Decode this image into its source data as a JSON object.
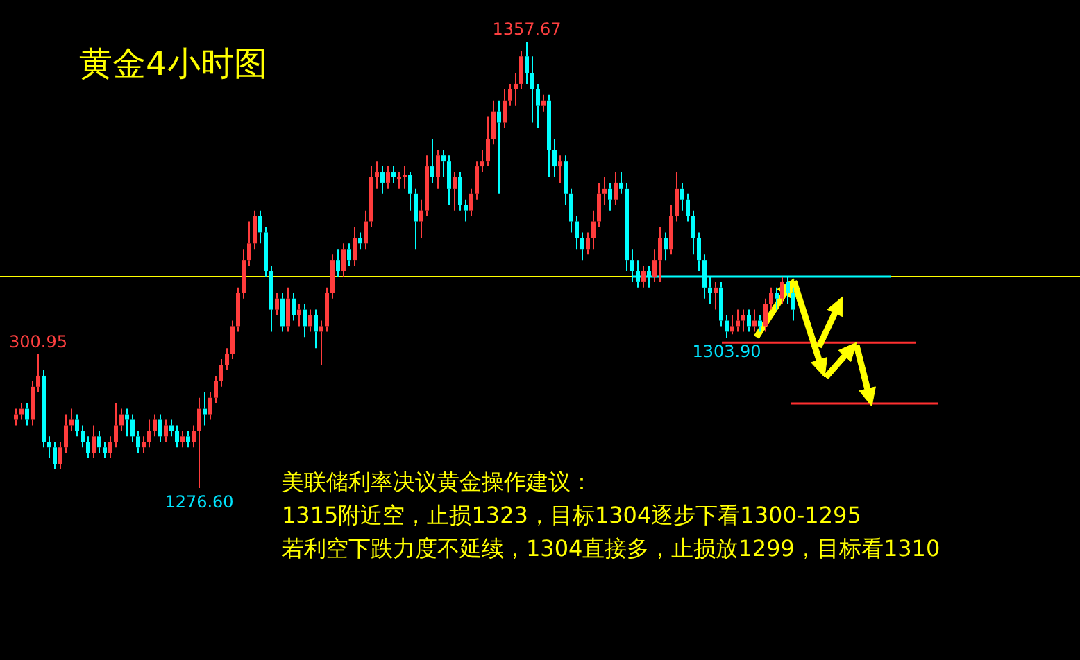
{
  "chart_data": {
    "type": "candlestick",
    "title": "黄金4小时图",
    "annotations": [
      {
        "text": "1357.67",
        "y": 1357.67
      },
      {
        "text": "1276.60",
        "y": 1276.6
      },
      {
        "text": "1303.90",
        "y": 1303.9
      },
      {
        "text": "300.95",
        "y": 1300.95
      },
      "美联储利率决议黄金操作建议：",
      "1315附近空，止损1323，目标1304逐步下看1300-1295",
      "若利空下跌力度不延续，1304直接多，止损放1299，目标看1310"
    ],
    "categories": [
      null,
      null,
      null,
      null,
      null,
      null,
      null,
      null,
      null,
      null,
      null,
      null,
      null,
      null,
      null,
      null,
      null,
      null,
      null,
      null,
      null,
      null,
      null,
      null,
      null,
      null,
      null,
      null,
      null,
      null,
      null,
      null,
      null,
      null,
      null,
      null,
      null,
      null,
      null,
      null,
      null,
      null,
      null,
      null,
      null,
      null,
      null,
      null,
      null,
      null,
      null,
      null,
      null,
      null,
      null,
      null,
      null,
      null,
      null,
      null,
      null,
      null,
      null,
      null,
      null,
      null,
      null,
      null,
      null,
      null,
      null,
      null,
      null,
      null,
      null,
      null,
      null,
      null,
      null,
      null,
      null,
      null,
      null,
      null,
      null,
      null,
      null,
      null,
      null,
      null,
      null,
      null,
      null,
      null,
      null,
      null,
      null,
      null,
      null,
      null,
      null,
      null,
      null,
      null,
      null,
      null,
      null,
      null,
      null,
      null,
      null,
      null,
      null,
      null,
      null,
      null,
      null,
      null,
      null,
      null,
      null,
      null,
      null,
      null,
      null,
      null,
      null,
      null,
      null,
      null,
      null,
      null,
      null,
      null,
      null,
      null,
      null,
      null,
      null,
      null,
      null
    ],
    "ohlc": [
      [
        1289,
        1291,
        1288,
        1290
      ],
      [
        1290,
        1292,
        1289,
        1291
      ],
      [
        1291,
        1292,
        1288,
        1289
      ],
      [
        1289,
        1296,
        1288,
        1295
      ],
      [
        1295,
        1300.95,
        1294,
        1297
      ],
      [
        1297,
        1298,
        1284,
        1285
      ],
      [
        1285,
        1286,
        1282,
        1284
      ],
      [
        1284,
        1285,
        1280,
        1281
      ],
      [
        1281,
        1285,
        1280,
        1284
      ],
      [
        1284,
        1290,
        1283,
        1288
      ],
      [
        1288,
        1291,
        1287,
        1289
      ],
      [
        1289,
        1290,
        1286,
        1287
      ],
      [
        1287,
        1288,
        1284,
        1285
      ],
      [
        1285,
        1286,
        1282,
        1283
      ],
      [
        1283,
        1288,
        1282,
        1286
      ],
      [
        1286,
        1287,
        1283,
        1284
      ],
      [
        1284,
        1285,
        1282,
        1283
      ],
      [
        1283,
        1286,
        1282,
        1285
      ],
      [
        1285,
        1292,
        1284,
        1288
      ],
      [
        1288,
        1291,
        1287,
        1290
      ],
      [
        1290,
        1291,
        1286,
        1289
      ],
      [
        1289,
        1290,
        1285,
        1286
      ],
      [
        1286,
        1287,
        1283,
        1284
      ],
      [
        1284,
        1286,
        1283,
        1285
      ],
      [
        1285,
        1289,
        1284,
        1287
      ],
      [
        1287,
        1290,
        1286,
        1289
      ],
      [
        1289,
        1290,
        1285,
        1286
      ],
      [
        1286,
        1289,
        1285,
        1288
      ],
      [
        1288,
        1289,
        1286,
        1287
      ],
      [
        1287,
        1288,
        1284,
        1285
      ],
      [
        1285,
        1287,
        1284,
        1286
      ],
      [
        1286,
        1287,
        1284,
        1285
      ],
      [
        1285,
        1288,
        1284,
        1287
      ],
      [
        1287,
        1293,
        1276.6,
        1291
      ],
      [
        1291,
        1294,
        1288,
        1290
      ],
      [
        1290,
        1294,
        1289,
        1293
      ],
      [
        1293,
        1297,
        1292,
        1296
      ],
      [
        1296,
        1300,
        1295,
        1299
      ],
      [
        1299,
        1302,
        1298,
        1301
      ],
      [
        1301,
        1307,
        1300,
        1306
      ],
      [
        1306,
        1313,
        1305,
        1312
      ],
      [
        1312,
        1320,
        1311,
        1318
      ],
      [
        1318,
        1325,
        1317,
        1321
      ],
      [
        1321,
        1327,
        1320,
        1326
      ],
      [
        1326,
        1327,
        1321,
        1323
      ],
      [
        1323,
        1324,
        1315,
        1316
      ],
      [
        1316,
        1317,
        1305,
        1309
      ],
      [
        1309,
        1312,
        1308,
        1311
      ],
      [
        1311,
        1312,
        1305,
        1306
      ],
      [
        1306,
        1313,
        1305,
        1311
      ],
      [
        1311,
        1312,
        1307,
        1308
      ],
      [
        1308,
        1310,
        1306,
        1309
      ],
      [
        1309,
        1310,
        1304,
        1306
      ],
      [
        1306,
        1309,
        1305,
        1308
      ],
      [
        1308,
        1309,
        1302,
        1305
      ],
      [
        1305,
        1307,
        1299,
        1306
      ],
      [
        1306,
        1313,
        1305,
        1312
      ],
      [
        1312,
        1319,
        1311,
        1318
      ],
      [
        1318,
        1320,
        1315,
        1316
      ],
      [
        1316,
        1321,
        1315,
        1320
      ],
      [
        1320,
        1321,
        1317,
        1318
      ],
      [
        1318,
        1324,
        1317,
        1322
      ],
      [
        1322,
        1323,
        1320,
        1321
      ],
      [
        1321,
        1327,
        1320,
        1325
      ],
      [
        1325,
        1335,
        1324,
        1333
      ],
      [
        1333,
        1336,
        1331,
        1334
      ],
      [
        1334,
        1335,
        1330,
        1332
      ],
      [
        1332,
        1335,
        1331,
        1334
      ],
      [
        1334,
        1335,
        1332,
        1333
      ],
      [
        1333,
        1334,
        1331,
        1333
      ],
      [
        1333,
        1335,
        1331,
        1333.5
      ],
      [
        1333.5,
        1334,
        1327,
        1330
      ],
      [
        1330,
        1331,
        1320,
        1325
      ],
      [
        1325,
        1329,
        1322,
        1327
      ],
      [
        1327,
        1337,
        1326,
        1335
      ],
      [
        1335,
        1340,
        1332,
        1333
      ],
      [
        1333,
        1338,
        1331,
        1337
      ],
      [
        1337,
        1338,
        1333,
        1336
      ],
      [
        1336,
        1337,
        1328,
        1331
      ],
      [
        1331,
        1334,
        1327,
        1333
      ],
      [
        1333,
        1334,
        1327,
        1328
      ],
      [
        1328,
        1329,
        1325,
        1327
      ],
      [
        1327,
        1331,
        1326,
        1330
      ],
      [
        1330,
        1336,
        1329,
        1335
      ],
      [
        1335,
        1338,
        1334,
        1336
      ],
      [
        1336,
        1344,
        1335,
        1340
      ],
      [
        1340,
        1347,
        1339,
        1345
      ],
      [
        1345,
        1347,
        1330,
        1343
      ],
      [
        1343,
        1349,
        1342,
        1347
      ],
      [
        1347,
        1350,
        1346,
        1349
      ],
      [
        1349,
        1352,
        1346,
        1350
      ],
      [
        1350,
        1356,
        1349,
        1355
      ],
      [
        1355,
        1357.67,
        1350,
        1352
      ],
      [
        1352,
        1355,
        1343,
        1349
      ],
      [
        1349,
        1350,
        1342,
        1346
      ],
      [
        1346,
        1348,
        1345,
        1347
      ],
      [
        1347,
        1348,
        1333,
        1338
      ],
      [
        1338,
        1340,
        1333,
        1335
      ],
      [
        1335,
        1337,
        1332,
        1336
      ],
      [
        1336,
        1337,
        1328,
        1330
      ],
      [
        1330,
        1331,
        1323,
        1325
      ],
      [
        1325,
        1326,
        1320,
        1322
      ],
      [
        1322,
        1323,
        1318,
        1320
      ],
      [
        1320,
        1323,
        1319,
        1322
      ],
      [
        1322,
        1327,
        1320,
        1325
      ],
      [
        1325,
        1332,
        1324,
        1330
      ],
      [
        1330,
        1333,
        1328,
        1331
      ],
      [
        1331,
        1332,
        1327,
        1329
      ],
      [
        1329,
        1334,
        1328,
        1332
      ],
      [
        1332,
        1334,
        1330,
        1331
      ],
      [
        1331,
        1332,
        1316,
        1318
      ],
      [
        1318,
        1320,
        1314,
        1316
      ],
      [
        1316,
        1318,
        1313,
        1314
      ],
      [
        1314,
        1317,
        1313,
        1316
      ],
      [
        1316,
        1317,
        1313,
        1315
      ],
      [
        1315,
        1320,
        1314,
        1318
      ],
      [
        1318,
        1324,
        1314,
        1322
      ],
      [
        1322,
        1323,
        1318,
        1320
      ],
      [
        1320,
        1328,
        1319,
        1326
      ],
      [
        1326,
        1334,
        1325,
        1331
      ],
      [
        1331,
        1332,
        1327,
        1329
      ],
      [
        1329,
        1330,
        1325,
        1326
      ],
      [
        1326,
        1327,
        1319,
        1322
      ],
      [
        1322,
        1323,
        1316,
        1318
      ],
      [
        1318,
        1319,
        1311,
        1313
      ],
      [
        1313,
        1315,
        1310,
        1312
      ],
      [
        1312,
        1314,
        1309,
        1313
      ],
      [
        1313,
        1314,
        1306,
        1307
      ],
      [
        1307,
        1308,
        1303.9,
        1305
      ],
      [
        1305,
        1308,
        1304.5,
        1306
      ],
      [
        1306,
        1309,
        1305,
        1307
      ],
      [
        1307,
        1309,
        1305,
        1308
      ],
      [
        1308,
        1309,
        1305,
        1306
      ],
      [
        1306,
        1309,
        1305,
        1307
      ],
      [
        1307,
        1308,
        1305,
        1306
      ],
      [
        1306,
        1311,
        1305,
        1310
      ],
      [
        1310,
        1313,
        1309,
        1312
      ],
      [
        1312,
        1313,
        1309,
        1311
      ],
      [
        1311,
        1315,
        1310,
        1314
      ],
      [
        1314,
        1315,
        1310,
        1312
      ],
      [
        1312,
        1313,
        1307,
        1309
      ]
    ],
    "colors": [
      "#ff3c3c",
      "#ff3c3c",
      "#00ffff",
      "#ff3c3c",
      "#ff3c3c",
      "#00ffff",
      "#00ffff",
      "#00ffff",
      "#ff3c3c",
      "#ff3c3c",
      "#ff3c3c",
      "#00ffff",
      "#00ffff",
      "#00ffff",
      "#ff3c3c",
      "#00ffff",
      "#00ffff",
      "#ff3c3c",
      "#ff3c3c",
      "#ff3c3c",
      "#00ffff",
      "#00ffff",
      "#00ffff",
      "#ff3c3c",
      "#ff3c3c",
      "#ff3c3c",
      "#00ffff",
      "#ff3c3c",
      "#00ffff",
      "#00ffff",
      "#ff3c3c",
      "#00ffff",
      "#ff3c3c",
      "#ff3c3c",
      "#00ffff",
      "#ff3c3c",
      "#ff3c3c",
      "#ff3c3c",
      "#ff3c3c",
      "#ff3c3c",
      "#ff3c3c",
      "#ff3c3c",
      "#ff3c3c",
      "#ff3c3c",
      "#00ffff",
      "#00ffff",
      "#00ffff",
      "#ff3c3c",
      "#00ffff",
      "#ff3c3c",
      "#00ffff",
      "#ff3c3c",
      "#00ffff",
      "#ff3c3c",
      "#00ffff",
      "#ff3c3c",
      "#ff3c3c",
      "#ff3c3c",
      "#00ffff",
      "#ff3c3c",
      "#00ffff",
      "#ff3c3c",
      "#00ffff",
      "#ff3c3c",
      "#ff3c3c",
      "#ff3c3c",
      "#00ffff",
      "#ff3c3c",
      "#00ffff",
      "#ff3c3c",
      "#ff3c3c",
      "#00ffff",
      "#00ffff",
      "#ff3c3c",
      "#ff3c3c",
      "#00ffff",
      "#ff3c3c",
      "#00ffff",
      "#00ffff",
      "#ff3c3c",
      "#00ffff",
      "#00ffff",
      "#ff3c3c",
      "#ff3c3c",
      "#ff3c3c",
      "#ff3c3c",
      "#ff3c3c",
      "#00ffff",
      "#ff3c3c",
      "#ff3c3c",
      "#ff3c3c",
      "#ff3c3c",
      "#00ffff",
      "#00ffff",
      "#00ffff",
      "#ff3c3c",
      "#00ffff",
      "#00ffff",
      "#ff3c3c",
      "#00ffff",
      "#00ffff",
      "#00ffff",
      "#00ffff",
      "#ff3c3c",
      "#ff3c3c",
      "#ff3c3c",
      "#ff3c3c",
      "#00ffff",
      "#ff3c3c",
      "#00ffff",
      "#00ffff",
      "#00ffff",
      "#00ffff",
      "#ff3c3c",
      "#00ffff",
      "#ff3c3c",
      "#ff3c3c",
      "#00ffff",
      "#ff3c3c",
      "#ff3c3c",
      "#00ffff",
      "#00ffff",
      "#00ffff",
      "#00ffff",
      "#00ffff",
      "#00ffff",
      "#ff3c3c",
      "#00ffff",
      "#00ffff",
      "#ff3c3c",
      "#ff3c3c",
      "#ff3c3c",
      "#00ffff",
      "#ff3c3c",
      "#00ffff",
      "#ff3c3c",
      "#ff3c3c",
      "#00ffff",
      "#ff3c3c",
      "#00ffff",
      "#00ffff"
    ],
    "ref_lines": [
      {
        "axis": "y",
        "value": 1315,
        "color": "#ffff00"
      },
      {
        "axis": "y",
        "value": 1315,
        "color": "#00ffff"
      },
      {
        "axis": "y",
        "value": 1303,
        "color": "#ff3030"
      }
    ]
  }
}
